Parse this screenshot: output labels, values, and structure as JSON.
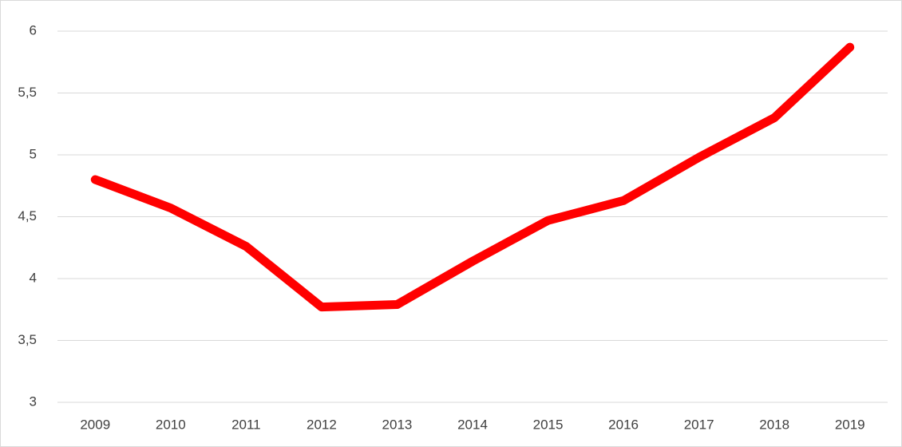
{
  "chart_data": {
    "type": "line",
    "categories": [
      "2009",
      "2010",
      "2011",
      "2012",
      "2013",
      "2014",
      "2015",
      "2016",
      "2017",
      "2018",
      "2019"
    ],
    "series": [
      {
        "color": "#ff0000",
        "values": [
          4.8,
          4.57,
          4.26,
          3.77,
          3.79,
          4.14,
          4.47,
          4.63,
          4.98,
          5.3,
          5.87
        ]
      }
    ],
    "ylim": [
      3,
      6
    ],
    "yticks": [
      3,
      {
        "value": 3.5,
        "label": "3,5"
      },
      4,
      {
        "value": 4.5,
        "label": "4,5"
      },
      5,
      {
        "value": 5.5,
        "label": "5,5"
      },
      6
    ],
    "grid": true
  }
}
